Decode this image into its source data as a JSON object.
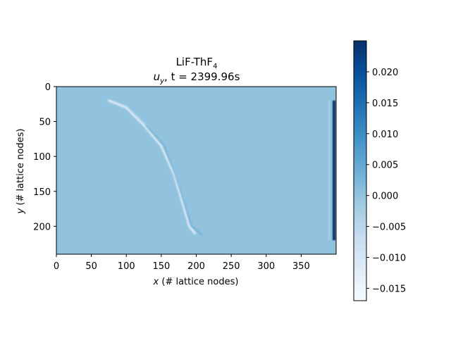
{
  "chart_data": {
    "type": "heatmap",
    "title_line1": {
      "main": "LiF-ThF",
      "sub": "4"
    },
    "title_line2": {
      "var": "u",
      "sub": "y",
      "rest": ", t = 2399.96s"
    },
    "xlabel": {
      "var": "x",
      "rest": " (# lattice nodes)"
    },
    "ylabel": {
      "var": "y",
      "rest": " (# lattice nodes)"
    },
    "xlim": [
      0,
      400
    ],
    "ylim": [
      0,
      240
    ],
    "y_inverted": true,
    "x_ticks": [
      0,
      50,
      100,
      150,
      200,
      250,
      300,
      350
    ],
    "x_tick_labels": [
      "0",
      "50",
      "100",
      "150",
      "200",
      "250",
      "300",
      "350"
    ],
    "y_ticks": [
      0,
      50,
      100,
      150,
      200
    ],
    "y_tick_labels": [
      "0",
      "50",
      "100",
      "150",
      "200"
    ],
    "colormap": "Blues",
    "colormap_stops": [
      "#f7fbff",
      "#deebf7",
      "#c6dbef",
      "#9ecae1",
      "#6baed6",
      "#4292c6",
      "#2171b5",
      "#08519c",
      "#08306b"
    ],
    "clim": [
      -0.017,
      0.025
    ],
    "background_value": 0.0,
    "colorbar_ticks": [
      -0.015,
      -0.01,
      -0.005,
      0.0,
      0.005,
      0.01,
      0.015,
      0.02
    ],
    "colorbar_tick_labels": [
      "−0.015",
      "−0.010",
      "−0.005",
      "0.000",
      "0.005",
      "0.010",
      "0.015",
      "0.020"
    ],
    "features": [
      {
        "kind": "negative-streak",
        "points": [
          [
            75,
            20
          ],
          [
            100,
            30
          ],
          [
            125,
            55
          ],
          [
            150,
            85
          ],
          [
            168,
            125
          ],
          [
            180,
            165
          ],
          [
            190,
            200
          ],
          [
            198,
            210
          ]
        ],
        "value": -0.012
      },
      {
        "kind": "positive-edge",
        "points": [
          [
            125,
            55
          ],
          [
            150,
            82
          ],
          [
            165,
            120
          ],
          [
            178,
            160
          ],
          [
            190,
            198
          ],
          [
            206,
            212
          ]
        ],
        "value": 0.008
      },
      {
        "kind": "boundary-band",
        "x": 397,
        "y_range": [
          20,
          220
        ],
        "value": 0.025
      },
      {
        "kind": "boundary-edge",
        "x": 390,
        "y_range": [
          20,
          220
        ],
        "value": -0.004
      }
    ]
  }
}
